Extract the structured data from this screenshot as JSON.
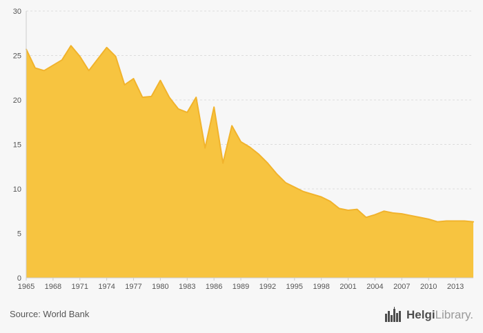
{
  "chart_data": {
    "type": "area",
    "title": "",
    "xlabel": "",
    "ylabel": "",
    "ylim": [
      0,
      30
    ],
    "yticks": [
      0,
      5,
      10,
      15,
      20,
      25,
      30
    ],
    "xtick_labels": [
      "1965",
      "1968",
      "1971",
      "1974",
      "1977",
      "1980",
      "1983",
      "1986",
      "1989",
      "1992",
      "1995",
      "1998",
      "2001",
      "2004",
      "2007",
      "2010",
      "2013"
    ],
    "grid": "horizontal-dashed",
    "legend": "none",
    "area_color": "#F7C440",
    "line_color": "#F1B32C",
    "axis_color": "#cccccc",
    "grid_color": "#dddddd",
    "tick_text_color": "#555555",
    "background": "#f7f7f7",
    "x": [
      1965,
      1966,
      1967,
      1968,
      1969,
      1970,
      1971,
      1972,
      1973,
      1974,
      1975,
      1976,
      1977,
      1978,
      1979,
      1980,
      1981,
      1982,
      1983,
      1984,
      1985,
      1986,
      1987,
      1988,
      1989,
      1990,
      1991,
      1992,
      1993,
      1994,
      1995,
      1996,
      1997,
      1998,
      1999,
      2000,
      2001,
      2002,
      2003,
      2004,
      2005,
      2006,
      2007,
      2008,
      2009,
      2010,
      2011,
      2012,
      2013,
      2014,
      2015
    ],
    "values": [
      25.7,
      23.6,
      23.3,
      23.9,
      24.5,
      26.1,
      24.9,
      23.3,
      24.6,
      25.9,
      24.9,
      21.7,
      22.4,
      20.3,
      20.4,
      22.2,
      20.3,
      19.0,
      18.6,
      20.3,
      14.6,
      19.2,
      12.9,
      17.1,
      15.3,
      14.7,
      13.9,
      12.9,
      11.7,
      10.7,
      10.2,
      9.7,
      9.4,
      9.1,
      8.6,
      7.8,
      7.6,
      7.7,
      6.8,
      7.1,
      7.5,
      7.3,
      7.2,
      7.0,
      6.8,
      6.6,
      6.3,
      6.4,
      6.4,
      6.4,
      6.3
    ]
  },
  "footer": {
    "source_label": "Source: World Bank"
  },
  "logo": {
    "brand_primary": "Helgi",
    "brand_secondary": "Library."
  }
}
